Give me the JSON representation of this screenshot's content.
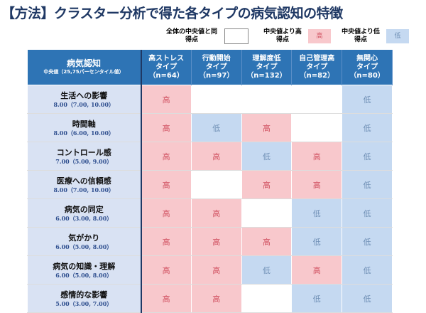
{
  "title": "【方法】クラスター分析で得た各タイプの病気認知の特徴",
  "legend": {
    "same": "全体の中央値と同得点",
    "high": "中央値より高得点",
    "high_mark": "高",
    "low": "中央値より低得点",
    "low_mark": "低"
  },
  "colors": {
    "header": "#2e74b5",
    "high": "#f8c8cc",
    "low": "#c5d9f1",
    "label_bg": "#d9e2f3"
  },
  "header": {
    "title": "病気認知",
    "subtitle": "中央値（25,75パーセンタイル値）",
    "types": [
      {
        "name": "高ストレスタイプ",
        "n": "（n=64）"
      },
      {
        "name": "行動開始タイプ",
        "n": "（n=97）"
      },
      {
        "name": "理解度低タイプ",
        "n": "（n=132）"
      },
      {
        "name": "自己管理高タイプ",
        "n": "（n=82）"
      },
      {
        "name": "無関心タイプ",
        "n": "（n=80）"
      }
    ]
  },
  "rows": [
    {
      "name": "生活への影響",
      "value": "8.00（7.00, 10.00）",
      "cells": [
        "高",
        "",
        "",
        "",
        "低"
      ]
    },
    {
      "name": "時間軸",
      "value": "8.00（6.00, 10.00）",
      "cells": [
        "高",
        "低",
        "高",
        "",
        "低"
      ]
    },
    {
      "name": "コントロール感",
      "value": "7.00（5.00, 9.00）",
      "cells": [
        "高",
        "高",
        "低",
        "高",
        "低"
      ]
    },
    {
      "name": "医療への信頼感",
      "value": "8.00（7.00, 10.00）",
      "cells": [
        "高",
        "",
        "高",
        "高",
        "低"
      ]
    },
    {
      "name": "病気の同定",
      "value": "6.00（3.00, 8.00）",
      "cells": [
        "高",
        "高",
        "",
        "低",
        "低"
      ]
    },
    {
      "name": "気がかり",
      "value": "6.00（5.00, 8.00）",
      "cells": [
        "高",
        "高",
        "高",
        "低",
        "低"
      ]
    },
    {
      "name": "病気の知識・理解",
      "value": "6.00（5.00, 8.00）",
      "cells": [
        "高",
        "高",
        "低",
        "高",
        "低"
      ]
    },
    {
      "name": "感情的な影響",
      "value": "5.00（3.00, 7.00）",
      "cells": [
        "高",
        "高",
        "",
        "低",
        "低"
      ]
    }
  ]
}
